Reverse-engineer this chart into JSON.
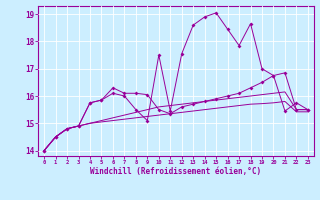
{
  "xlabel": "Windchill (Refroidissement éolien,°C)",
  "bg_color": "#cceeff",
  "line_color": "#990099",
  "grid_color": "#ffffff",
  "x_data": [
    0,
    1,
    2,
    3,
    4,
    5,
    6,
    7,
    8,
    9,
    10,
    11,
    12,
    13,
    14,
    15,
    16,
    17,
    18,
    19,
    20,
    21,
    22,
    23
  ],
  "line_squig": [
    14.0,
    14.5,
    14.8,
    14.9,
    15.75,
    15.85,
    16.3,
    16.1,
    16.1,
    16.05,
    15.5,
    15.35,
    15.6,
    15.7,
    15.8,
    15.9,
    16.0,
    16.1,
    16.3,
    16.5,
    16.75,
    16.85,
    15.5,
    15.5
  ],
  "line_spike": [
    14.0,
    14.5,
    14.8,
    14.9,
    15.75,
    15.85,
    16.1,
    16.0,
    15.5,
    15.1,
    17.5,
    15.45,
    17.55,
    18.6,
    18.9,
    19.05,
    18.45,
    17.85,
    18.65,
    17.0,
    16.75,
    15.45,
    15.75,
    15.5
  ],
  "line_top": [
    14.0,
    14.5,
    14.8,
    14.9,
    15.0,
    15.1,
    15.2,
    15.3,
    15.4,
    15.5,
    15.6,
    15.65,
    15.7,
    15.75,
    15.8,
    15.85,
    15.9,
    15.95,
    16.0,
    16.05,
    16.1,
    16.15,
    15.5,
    15.5
  ],
  "line_bot": [
    14.0,
    14.5,
    14.8,
    14.9,
    15.0,
    15.05,
    15.1,
    15.15,
    15.2,
    15.25,
    15.3,
    15.35,
    15.4,
    15.45,
    15.5,
    15.55,
    15.6,
    15.65,
    15.7,
    15.72,
    15.75,
    15.8,
    15.42,
    15.42
  ],
  "ylim": [
    13.8,
    19.3
  ],
  "xlim": [
    -0.5,
    23.5
  ],
  "yticks": [
    14,
    15,
    16,
    17,
    18,
    19
  ],
  "xticks": [
    0,
    1,
    2,
    3,
    4,
    5,
    6,
    7,
    8,
    9,
    10,
    11,
    12,
    13,
    14,
    15,
    16,
    17,
    18,
    19,
    20,
    21,
    22,
    23
  ]
}
